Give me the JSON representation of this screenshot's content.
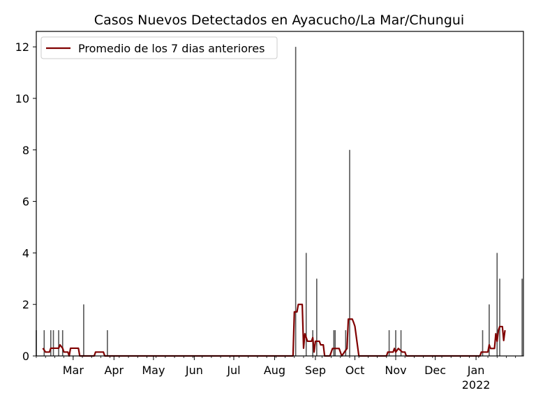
{
  "chart_data": {
    "type": "bar",
    "title": "Casos Nuevos Detectados en Ayacucho/La Mar/Chungui",
    "xlabel": "",
    "ylabel": "",
    "x_range": [
      "2021-02-01",
      "2022-02-06"
    ],
    "ylim": [
      0,
      12.6
    ],
    "y_ticks": [
      0,
      2,
      4,
      6,
      8,
      10,
      12
    ],
    "x_ticks": [
      {
        "date": "2021-03-01",
        "label": "Mar"
      },
      {
        "date": "2021-04-01",
        "label": "Apr"
      },
      {
        "date": "2021-05-01",
        "label": "May"
      },
      {
        "date": "2021-06-01",
        "label": "Jun"
      },
      {
        "date": "2021-07-01",
        "label": "Jul"
      },
      {
        "date": "2021-08-01",
        "label": "Aug"
      },
      {
        "date": "2021-09-01",
        "label": "Sep"
      },
      {
        "date": "2021-10-01",
        "label": "Oct"
      },
      {
        "date": "2021-11-01",
        "label": "Nov"
      },
      {
        "date": "2021-12-01",
        "label": "Dec"
      },
      {
        "date": "2022-01-01",
        "label": "Jan",
        "sublabel": "2022"
      }
    ],
    "bar_color": "#555555",
    "line_color": "#800000",
    "grid": false,
    "legend_position": "top-left",
    "daily_cases": [
      [
        "2021-02-01",
        1
      ],
      [
        "2021-02-07",
        1
      ],
      [
        "2021-02-12",
        1
      ],
      [
        "2021-02-14",
        1
      ],
      [
        "2021-02-18",
        1
      ],
      [
        "2021-02-21",
        1
      ],
      [
        "2021-03-09",
        2
      ],
      [
        "2021-03-27",
        1
      ],
      [
        "2021-08-17",
        12
      ],
      [
        "2021-08-25",
        4
      ],
      [
        "2021-08-30",
        1
      ],
      [
        "2021-09-02",
        3
      ],
      [
        "2021-09-15",
        1
      ],
      [
        "2021-09-16",
        1
      ],
      [
        "2021-09-24",
        1
      ],
      [
        "2021-09-27",
        8
      ],
      [
        "2021-10-27",
        1
      ],
      [
        "2021-11-01",
        1
      ],
      [
        "2021-11-05",
        1
      ],
      [
        "2022-01-06",
        1
      ],
      [
        "2022-01-11",
        2
      ],
      [
        "2022-01-17",
        4
      ],
      [
        "2022-01-19",
        3
      ],
      [
        "2022-02-05",
        3
      ]
    ],
    "series": [
      {
        "name": "Promedio de los 7 dias anteriores",
        "points": [
          [
            "2021-02-06",
            0.3
          ],
          [
            "2021-02-08",
            0.15
          ],
          [
            "2021-02-11",
            0.15
          ],
          [
            "2021-02-12",
            0.3
          ],
          [
            "2021-02-18",
            0.3
          ],
          [
            "2021-02-19",
            0.43
          ],
          [
            "2021-02-21",
            0.3
          ],
          [
            "2021-02-22",
            0.15
          ],
          [
            "2021-02-25",
            0.15
          ],
          [
            "2021-02-26",
            0.0
          ],
          [
            "2021-02-27",
            0.3
          ],
          [
            "2021-03-05",
            0.3
          ],
          [
            "2021-03-06",
            0.0
          ],
          [
            "2021-03-17",
            0.0
          ],
          [
            "2021-03-18",
            0.15
          ],
          [
            "2021-03-24",
            0.15
          ],
          [
            "2021-03-25",
            0.0
          ],
          [
            "2021-08-15",
            0.0
          ],
          [
            "2021-08-16",
            1.71
          ],
          [
            "2021-08-18",
            1.71
          ],
          [
            "2021-08-19",
            2.0
          ],
          [
            "2021-08-22",
            2.0
          ],
          [
            "2021-08-23",
            0.3
          ],
          [
            "2021-08-24",
            0.86
          ],
          [
            "2021-08-26",
            0.57
          ],
          [
            "2021-08-29",
            0.57
          ],
          [
            "2021-08-30",
            0.71
          ],
          [
            "2021-08-31",
            0.15
          ],
          [
            "2021-09-01",
            0.57
          ],
          [
            "2021-09-04",
            0.57
          ],
          [
            "2021-09-05",
            0.43
          ],
          [
            "2021-09-07",
            0.43
          ],
          [
            "2021-09-08",
            0.0
          ],
          [
            "2021-09-12",
            0.0
          ],
          [
            "2021-09-14",
            0.29
          ],
          [
            "2021-09-19",
            0.29
          ],
          [
            "2021-09-21",
            0.0
          ],
          [
            "2021-09-23",
            0.15
          ],
          [
            "2021-09-25",
            0.29
          ],
          [
            "2021-09-26",
            1.43
          ],
          [
            "2021-09-29",
            1.43
          ],
          [
            "2021-09-30",
            1.3
          ],
          [
            "2021-10-01",
            1.15
          ],
          [
            "2021-10-04",
            0.0
          ],
          [
            "2021-10-25",
            0.0
          ],
          [
            "2021-10-26",
            0.15
          ],
          [
            "2021-10-30",
            0.15
          ],
          [
            "2021-10-31",
            0.29
          ],
          [
            "2021-11-01",
            0.15
          ],
          [
            "2021-11-03",
            0.29
          ],
          [
            "2021-11-06",
            0.15
          ],
          [
            "2021-11-08",
            0.15
          ],
          [
            "2021-11-09",
            0.0
          ],
          [
            "2022-01-04",
            0.0
          ],
          [
            "2022-01-05",
            0.15
          ],
          [
            "2022-01-10",
            0.15
          ],
          [
            "2022-01-11",
            0.43
          ],
          [
            "2022-01-12",
            0.29
          ],
          [
            "2022-01-15",
            0.29
          ],
          [
            "2022-01-16",
            0.86
          ],
          [
            "2022-01-17",
            0.57
          ],
          [
            "2022-01-18",
            1.0
          ],
          [
            "2022-01-19",
            1.14
          ],
          [
            "2022-01-21",
            1.14
          ],
          [
            "2022-01-22",
            0.6
          ],
          [
            "2022-01-23",
            1.0
          ]
        ]
      }
    ]
  }
}
